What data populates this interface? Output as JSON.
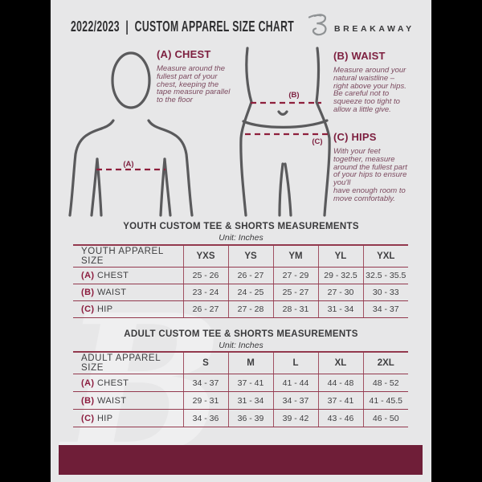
{
  "palette": {
    "outer_background": "#000000",
    "page_background": "#e7e7e8",
    "maroon_heading": "#7d1f3f",
    "maroon_body_text": "#7c4a5f",
    "maroon_rule": "#93394e",
    "maroon_footer": "#6f1e38",
    "figure_gray": "#5a5a5c",
    "logo_gray": "#8f9294"
  },
  "header": {
    "title": "2022/2023  |  CUSTOM APPAREL SIZE CHART",
    "brand": "BREAKAWAY",
    "logo_icon": "breakaway-b-logo"
  },
  "diagram": {
    "chest_marker": "(A)",
    "waist_marker": "(B)",
    "hips_marker": "(C)"
  },
  "instructions": [
    {
      "heading": "(A) CHEST",
      "body": "Measure around the\nfullest part of your\nchest, keeping the\ntape measure parallel\nto the floor"
    },
    {
      "heading": "(B) WAIST",
      "body": "Measure around your\nnatural waistline –\nright above your hips.\nBe careful not to\nsqueeze too tight to\nallow a little give."
    },
    {
      "heading": "(C) HIPS",
      "body": "With your feet\ntogether, measure\naround the fullest part\nof your hips to ensure\nyou'll\nhave enough room to\nmove comfortably."
    }
  ],
  "youth_table": {
    "title": "YOUTH CUSTOM TEE & SHORTS MEASUREMENTS",
    "unit": "Unit: Inches",
    "header": [
      "YOUTH APPAREL SIZE",
      "YXS",
      "YS",
      "YM",
      "YL",
      "YXL"
    ],
    "rows": [
      {
        "prefix": "(A)",
        "label": "CHEST",
        "values": [
          "25 - 26",
          "26 - 27",
          "27 - 29",
          "29 - 32.5",
          "32.5 - 35.5"
        ]
      },
      {
        "prefix": "(B)",
        "label": "WAIST",
        "values": [
          "23 - 24",
          "24 - 25",
          "25 - 27",
          "27 - 30",
          "30 - 33"
        ]
      },
      {
        "prefix": "(C)",
        "label": "HIP",
        "values": [
          "26 - 27",
          "27 - 28",
          "28 - 31",
          "31 - 34",
          "34 - 37"
        ]
      }
    ]
  },
  "adult_table": {
    "title": "ADULT CUSTOM TEE & SHORTS MEASUREMENTS",
    "unit": "Unit: Inches",
    "header": [
      "ADULT APPAREL SIZE",
      "S",
      "M",
      "L",
      "XL",
      "2XL"
    ],
    "rows": [
      {
        "prefix": "(A)",
        "label": "CHEST",
        "values": [
          "34 - 37",
          "37 - 41",
          "41 - 44",
          "44 - 48",
          "48 - 52"
        ]
      },
      {
        "prefix": "(B)",
        "label": "WAIST",
        "values": [
          "29 - 31",
          "31 - 34",
          "34 - 37",
          "37 - 41",
          "41 - 45.5"
        ]
      },
      {
        "prefix": "(C)",
        "label": "HIP",
        "values": [
          "34 - 36",
          "36 - 39",
          "39 - 42",
          "43 - 46",
          "46 - 50"
        ]
      }
    ]
  },
  "watermark": {
    "letter": "B"
  }
}
